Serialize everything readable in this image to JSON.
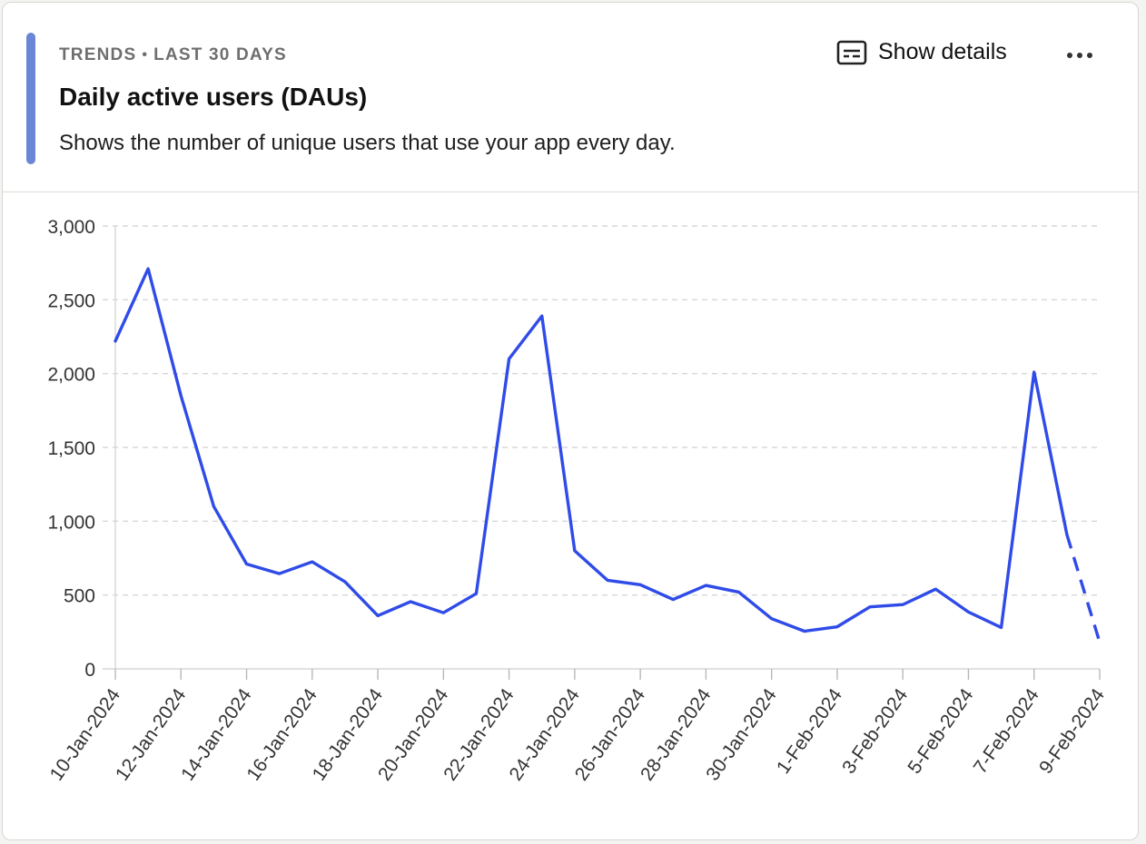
{
  "header": {
    "eyebrow_left": "TRENDS",
    "eyebrow_separator": "•",
    "eyebrow_right": "LAST 30 DAYS",
    "title": "Daily active users (DAUs)",
    "subtitle": "Shows the number of unique users that use your app every day.",
    "show_details_label": "Show details",
    "details_icon": "subtitles-icon",
    "more_icon": "more-horizontal-icon"
  },
  "colors": {
    "accent": "#6b86d6",
    "line": "#2f4be8",
    "grid": "#d7d7d7",
    "axis_text": "#333333"
  },
  "chart_data": {
    "type": "line",
    "title": "Daily active users (DAUs)",
    "xlabel": "",
    "ylabel": "",
    "ylim": [
      0,
      3000
    ],
    "yticks": [
      0,
      500,
      1000,
      1500,
      2000,
      2500,
      3000
    ],
    "ytick_labels": [
      "0",
      "500",
      "1,000",
      "1,500",
      "2,000",
      "2,500",
      "3,000"
    ],
    "grid": "horizontal-dashed",
    "x": [
      "10-Jan-2024",
      "11-Jan-2024",
      "12-Jan-2024",
      "13-Jan-2024",
      "14-Jan-2024",
      "15-Jan-2024",
      "16-Jan-2024",
      "17-Jan-2024",
      "18-Jan-2024",
      "19-Jan-2024",
      "20-Jan-2024",
      "21-Jan-2024",
      "22-Jan-2024",
      "23-Jan-2024",
      "24-Jan-2024",
      "25-Jan-2024",
      "26-Jan-2024",
      "27-Jan-2024",
      "28-Jan-2024",
      "29-Jan-2024",
      "30-Jan-2024",
      "31-Jan-2024",
      "1-Feb-2024",
      "2-Feb-2024",
      "3-Feb-2024",
      "4-Feb-2024",
      "5-Feb-2024",
      "6-Feb-2024",
      "7-Feb-2024",
      "8-Feb-2024",
      "9-Feb-2024"
    ],
    "x_tick_labels": [
      "10-Jan-2024",
      "12-Jan-2024",
      "14-Jan-2024",
      "16-Jan-2024",
      "18-Jan-2024",
      "20-Jan-2024",
      "22-Jan-2024",
      "24-Jan-2024",
      "26-Jan-2024",
      "28-Jan-2024",
      "30-Jan-2024",
      "1-Feb-2024",
      "3-Feb-2024",
      "5-Feb-2024",
      "7-Feb-2024",
      "9-Feb-2024"
    ],
    "series": [
      {
        "name": "DAUs",
        "values": [
          2220,
          2710,
          1850,
          1100,
          710,
          645,
          725,
          590,
          360,
          455,
          380,
          510,
          2100,
          2390,
          800,
          600,
          570,
          470,
          565,
          520,
          340,
          255,
          285,
          420,
          435,
          540,
          385,
          280,
          2010,
          910,
          180
        ],
        "incomplete_from_index": 29
      }
    ]
  }
}
